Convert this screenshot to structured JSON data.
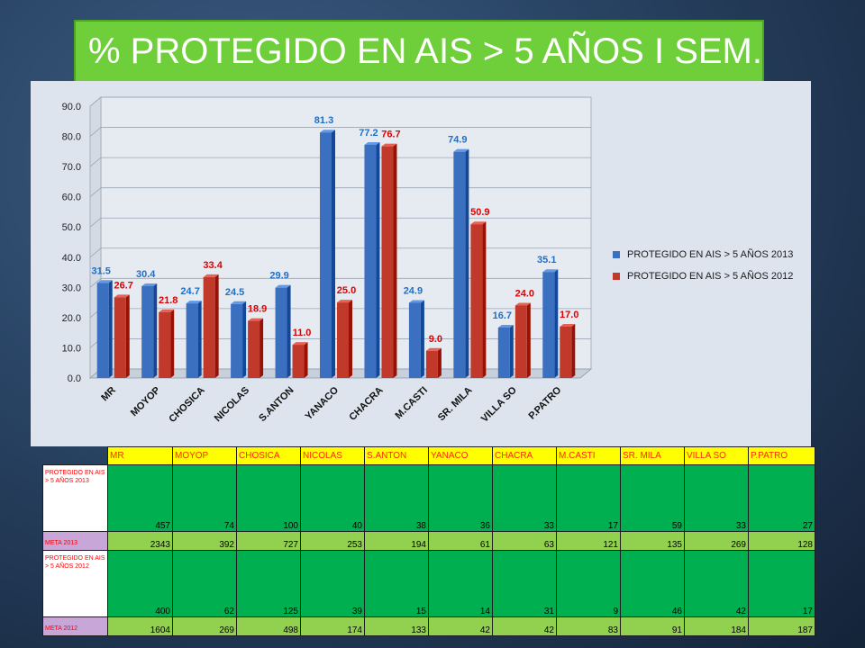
{
  "title": "% PROTEGIDO EN AIS > 5 AÑOS I SEM.",
  "chart_data": {
    "type": "bar",
    "categories": [
      "MR",
      "MOYOP",
      "CHOSICA",
      "NICOLAS",
      "S.ANTON",
      "YANACO",
      "CHACRA",
      "M.CASTI",
      "SR. MILA",
      "VILLA SO",
      "P.PATRO"
    ],
    "series": [
      {
        "name": "PROTEGIDO EN AIS  > 5 AÑOS 2013",
        "color": "#3b6fc0",
        "label_color": "#1f6fc5",
        "values": [
          31.5,
          30.4,
          24.7,
          24.5,
          29.9,
          81.3,
          77.2,
          24.9,
          74.9,
          16.7,
          35.1
        ],
        "labels": [
          "31.5",
          "30.4",
          "24.7",
          "24.5",
          "29.9",
          "81.3",
          "77.2",
          "24.9",
          "74.9",
          "16.7",
          "35.1"
        ]
      },
      {
        "name": "PROTEGIDO EN  AIS > 5 AÑOS 2012",
        "color": "#c0392b",
        "label_color": "#e00000",
        "values": [
          26.7,
          21.8,
          33.4,
          18.9,
          11.0,
          25.0,
          76.7,
          9.0,
          50.9,
          24.0,
          17.0
        ],
        "labels": [
          "26.7",
          "21.8",
          "33.4",
          "18.9",
          "11.0",
          "25.0",
          "76.7",
          "9.0",
          "50.9",
          "24.0",
          "17.0"
        ]
      }
    ],
    "ylim": [
      0,
      90
    ],
    "yticks": [
      "0.0",
      "10.0",
      "20.0",
      "30.0",
      "40.0",
      "50.0",
      "60.0",
      "70.0",
      "80.0",
      "90.0"
    ],
    "grid": true,
    "legend_position": "right"
  },
  "table": {
    "headers": [
      "MR",
      "MOYOP",
      "CHOSICA",
      "NICOLAS",
      "S.ANTON",
      "YANACO",
      "CHACRA",
      "M.CASTI",
      "SR. MILA",
      "VILLA SO",
      "P.PATRO"
    ],
    "rows": [
      {
        "label": "PROTEGIDO  EN  AIS  > 5 AÑOS 2013",
        "values": [
          "457",
          "74",
          "100",
          "40",
          "38",
          "36",
          "33",
          "17",
          "59",
          "33",
          "27"
        ]
      },
      {
        "label": "META  2013",
        "values": [
          "2343",
          "392",
          "727",
          "253",
          "194",
          "61",
          "63",
          "121",
          "135",
          "269",
          "128"
        ]
      },
      {
        "label": "PROTEGIDO  EN  AIS  > 5 AÑOS 2012",
        "values": [
          "400",
          "62",
          "125",
          "39",
          "15",
          "14",
          "31",
          "9",
          "46",
          "42",
          "17"
        ]
      },
      {
        "label": "META 2012",
        "values": [
          "1604",
          "269",
          "498",
          "174",
          "133",
          "42",
          "42",
          "83",
          "91",
          "184",
          "187"
        ]
      }
    ]
  }
}
